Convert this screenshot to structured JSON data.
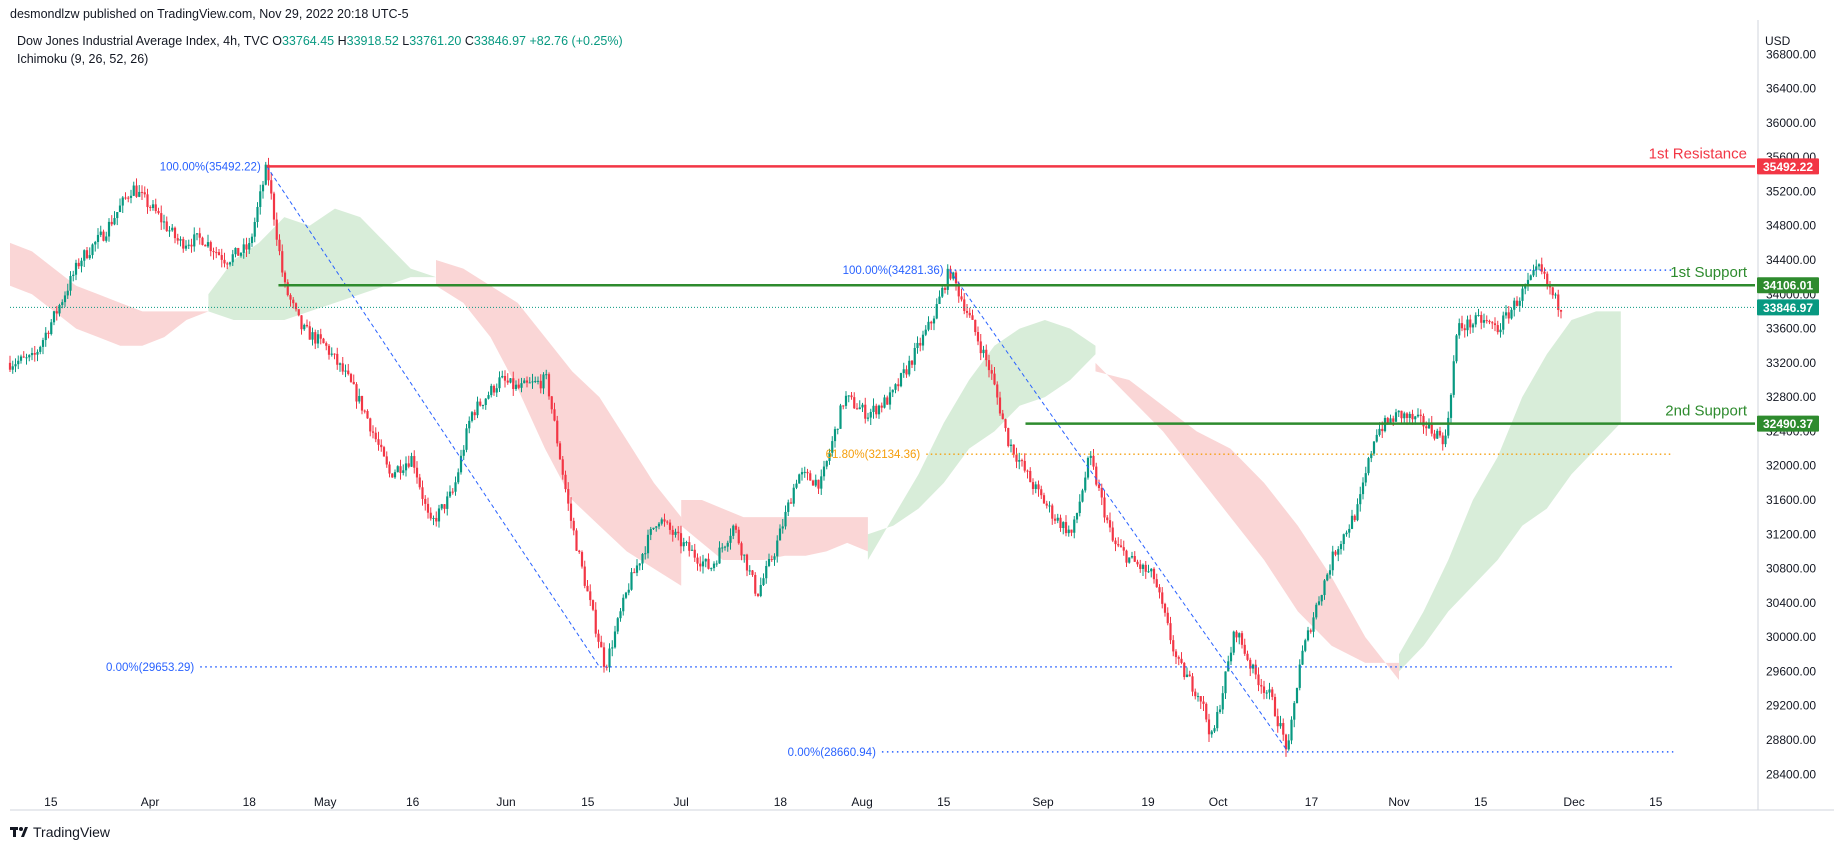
{
  "header": {
    "published": "desmondlzw published on TradingView.com, Nov 29, 2022 20:18 UTC-5",
    "symbol_title": "Dow Jones Industrial Average Index, 4h, TVC",
    "ohlc": {
      "o_label": "O",
      "o": "33764.45",
      "h_label": "H",
      "h": "33918.52",
      "l_label": "L",
      "l": "33761.20",
      "c_label": "C",
      "c": "33846.97",
      "change": "+82.76 (+0.25%)"
    },
    "indicator": "Ichimoku (9, 26, 52, 26)",
    "currency": "USD"
  },
  "footer": {
    "brand": "TradingView"
  },
  "colors": {
    "up": "#089981",
    "down": "#f23645",
    "resistance": "#f23645",
    "support": "#2e8b2e",
    "fib": "#2962ff",
    "fib618": "#f59e0b",
    "cloud_bull": "#c8e6c9",
    "cloud_bear": "#f8c5c5",
    "last_price": "#089981"
  },
  "chart_data": {
    "type": "candlestick",
    "title": "Dow Jones Industrial Average Index, 4h, TVC",
    "y_axis": {
      "min": 28100,
      "max": 37200,
      "ticks": [
        28400,
        28800,
        29200,
        29600,
        30000,
        30400,
        30800,
        31200,
        31600,
        32000,
        32400,
        32800,
        33200,
        33600,
        34000,
        34400,
        34800,
        35200,
        35600,
        36000,
        36400,
        36800
      ],
      "tick_labels": [
        "28400.00",
        "28800.00",
        "29200.00",
        "29600.00",
        "30000.00",
        "30400.00",
        "30800.00",
        "31200.00",
        "31600.00",
        "32000.00",
        "32400.00",
        "32800.00",
        "33200.00",
        "33600.00",
        "34000.00",
        "34400.00",
        "34800.00",
        "35200.00",
        "35600.00",
        "36000.00",
        "36400.00",
        "36800.00"
      ]
    },
    "x_axis": {
      "domain": [
        "2022-03-08",
        "2023-01-01"
      ],
      "ticks": [
        {
          "date": "2022-03-15",
          "label": "15"
        },
        {
          "date": "2022-04-01",
          "label": "Apr"
        },
        {
          "date": "2022-04-18",
          "label": "18"
        },
        {
          "date": "2022-05-01",
          "label": "May"
        },
        {
          "date": "2022-05-16",
          "label": "16"
        },
        {
          "date": "2022-06-01",
          "label": "Jun"
        },
        {
          "date": "2022-06-15",
          "label": "15"
        },
        {
          "date": "2022-07-01",
          "label": "Jul"
        },
        {
          "date": "2022-07-18",
          "label": "18"
        },
        {
          "date": "2022-08-01",
          "label": "Aug"
        },
        {
          "date": "2022-08-15",
          "label": "15"
        },
        {
          "date": "2022-09-01",
          "label": "Sep"
        },
        {
          "date": "2022-09-19",
          "label": "19"
        },
        {
          "date": "2022-10-01",
          "label": "Oct"
        },
        {
          "date": "2022-10-17",
          "label": "17"
        },
        {
          "date": "2022-11-01",
          "label": "Nov"
        },
        {
          "date": "2022-11-15",
          "label": "15"
        },
        {
          "date": "2022-12-01",
          "label": "Dec"
        },
        {
          "date": "2022-12-15",
          "label": "15"
        }
      ]
    },
    "price_path": [
      [
        "2022-03-08",
        33200
      ],
      [
        "2022-03-12",
        33250
      ],
      [
        "2022-03-16",
        33800
      ],
      [
        "2022-03-20",
        34400
      ],
      [
        "2022-03-24",
        34700
      ],
      [
        "2022-03-29",
        35250
      ],
      [
        "2022-04-02",
        34950
      ],
      [
        "2022-04-06",
        34600
      ],
      [
        "2022-04-10",
        34650
      ],
      [
        "2022-04-14",
        34400
      ],
      [
        "2022-04-18",
        34550
      ],
      [
        "2022-04-21",
        35492
      ],
      [
        "2022-04-24",
        34100
      ],
      [
        "2022-04-27",
        33600
      ],
      [
        "2022-05-01",
        33400
      ],
      [
        "2022-05-05",
        33000
      ],
      [
        "2022-05-08",
        32600
      ],
      [
        "2022-05-12",
        31900
      ],
      [
        "2022-05-16",
        32100
      ],
      [
        "2022-05-19",
        31300
      ],
      [
        "2022-05-23",
        31700
      ],
      [
        "2022-05-26",
        32600
      ],
      [
        "2022-05-31",
        33000
      ],
      [
        "2022-06-03",
        32900
      ],
      [
        "2022-06-08",
        33000
      ],
      [
        "2022-06-12",
        31400
      ],
      [
        "2022-06-15",
        30500
      ],
      [
        "2022-06-18",
        29653
      ],
      [
        "2022-06-22",
        30600
      ],
      [
        "2022-06-27",
        31400
      ],
      [
        "2022-07-01",
        31100
      ],
      [
        "2022-07-06",
        30800
      ],
      [
        "2022-07-10",
        31300
      ],
      [
        "2022-07-14",
        30500
      ],
      [
        "2022-07-17",
        31000
      ],
      [
        "2022-07-21",
        31900
      ],
      [
        "2022-07-25",
        31800
      ],
      [
        "2022-07-29",
        32800
      ],
      [
        "2022-08-02",
        32600
      ],
      [
        "2022-08-06",
        32800
      ],
      [
        "2022-08-10",
        33300
      ],
      [
        "2022-08-13",
        33700
      ],
      [
        "2022-08-16",
        34281
      ],
      [
        "2022-08-19",
        33800
      ],
      [
        "2022-08-23",
        33100
      ],
      [
        "2022-08-26",
        32300
      ],
      [
        "2022-08-30",
        31800
      ],
      [
        "2022-09-03",
        31400
      ],
      [
        "2022-09-06",
        31200
      ],
      [
        "2022-09-09",
        32100
      ],
      [
        "2022-09-13",
        31100
      ],
      [
        "2022-09-16",
        30900
      ],
      [
        "2022-09-20",
        30700
      ],
      [
        "2022-09-24",
        29700
      ],
      [
        "2022-09-28",
        29300
      ],
      [
        "2022-09-30",
        28800
      ],
      [
        "2022-10-04",
        30100
      ],
      [
        "2022-10-07",
        29600
      ],
      [
        "2022-10-10",
        29300
      ],
      [
        "2022-10-13",
        28661
      ],
      [
        "2022-10-15",
        29700
      ],
      [
        "2022-10-18",
        30400
      ],
      [
        "2022-10-21",
        31000
      ],
      [
        "2022-10-25",
        31500
      ],
      [
        "2022-10-28",
        32400
      ],
      [
        "2022-11-01",
        32600
      ],
      [
        "2022-11-05",
        32500
      ],
      [
        "2022-11-09",
        32300
      ],
      [
        "2022-11-11",
        33600
      ],
      [
        "2022-11-15",
        33700
      ],
      [
        "2022-11-18",
        33600
      ],
      [
        "2022-11-22",
        34000
      ],
      [
        "2022-11-25",
        34300
      ],
      [
        "2022-11-28",
        33900
      ],
      [
        "2022-11-29",
        33847
      ]
    ],
    "ichimoku_cloud": [
      {
        "from": "2022-03-08",
        "to": "2022-04-11",
        "bias": "bearish",
        "a": [
          34600,
          34500,
          34300,
          34100,
          34000,
          33900,
          33800,
          33800,
          33800,
          33800
        ],
        "b": [
          34100,
          34000,
          33800,
          33600,
          33500,
          33400,
          33400,
          33500,
          33700,
          33800
        ]
      },
      {
        "from": "2022-04-11",
        "to": "2022-05-20",
        "bias": "bullish",
        "a": [
          34000,
          34400,
          34600,
          34900,
          34800,
          35000,
          34900,
          34600,
          34300,
          34200
        ],
        "b": [
          33800,
          33700,
          33700,
          33700,
          33800,
          33900,
          34000,
          34100,
          34200,
          34200
        ]
      },
      {
        "from": "2022-05-20",
        "to": "2022-07-01",
        "bias": "bearish",
        "a": [
          34100,
          33900,
          33500,
          32900,
          32200,
          31600,
          31300,
          31000,
          30800,
          30600
        ],
        "b": [
          34400,
          34300,
          34100,
          33900,
          33500,
          33100,
          32800,
          32300,
          31800,
          31400
        ]
      },
      {
        "from": "2022-07-01",
        "to": "2022-08-02",
        "bias": "bearish",
        "a": [
          31300,
          31100,
          30900,
          30900,
          30900,
          30950,
          30950,
          31000,
          31100,
          31000
        ],
        "b": [
          31600,
          31600,
          31500,
          31400,
          31400,
          31400,
          31400,
          31400,
          31400,
          31400
        ]
      },
      {
        "from": "2022-08-02",
        "to": "2022-09-10",
        "bias": "bullish",
        "a": [
          30900,
          31400,
          31900,
          32500,
          33000,
          33400,
          33600,
          33700,
          33600,
          33400
        ],
        "b": [
          31200,
          31300,
          31500,
          31800,
          32200,
          32400,
          32700,
          32800,
          33000,
          33300
        ]
      },
      {
        "from": "2022-09-10",
        "to": "2022-11-01",
        "bias": "bearish",
        "a": [
          33200,
          32800,
          32400,
          31900,
          31400,
          30900,
          30300,
          29900,
          29700,
          29700
        ],
        "b": [
          33100,
          33000,
          32700,
          32400,
          32200,
          31800,
          31300,
          30700,
          30000,
          29500
        ]
      },
      {
        "from": "2022-11-01",
        "to": "2022-12-09",
        "bias": "bullish",
        "a": [
          29800,
          30300,
          30900,
          31600,
          32100,
          32800,
          33300,
          33700,
          33800,
          33800
        ],
        "b": [
          29600,
          29900,
          30300,
          30600,
          30900,
          31300,
          31500,
          31900,
          32200,
          32500
        ]
      }
    ],
    "horizontal_levels": [
      {
        "name": "1st Resistance",
        "label": "1st Resistance",
        "value": 35492.22,
        "price_tag": "35492.22",
        "from": "2022-04-21",
        "role": "resistance"
      },
      {
        "name": "1st Support",
        "label": "1st Support",
        "value": 34106.01,
        "price_tag": "34106.01",
        "from": "2022-04-23",
        "role": "support"
      },
      {
        "name": "2nd Support",
        "label": "2nd Support",
        "value": 32490.37,
        "price_tag": "32490.37",
        "from": "2022-08-29",
        "role": "support"
      }
    ],
    "fibonacci": [
      {
        "label_100": "100.00%(35492.22)",
        "label_0": "0.00%(29653.29)",
        "high": {
          "date": "2022-04-21",
          "value": 35492.22
        },
        "low": {
          "date": "2022-06-17",
          "value": 29653.29
        },
        "line_to": "2022-12-18"
      },
      {
        "label_100": "100.00%(34281.36)",
        "label_0": "0.00%(28660.94)",
        "label_618": "61.80%(32134.36)",
        "level_618": 32134.36,
        "high": {
          "date": "2022-08-16",
          "value": 34281.36
        },
        "low": {
          "date": "2022-10-13",
          "value": 28660.94
        },
        "line_to": "2022-12-18"
      }
    ],
    "last_price": {
      "value": 33846.97,
      "label": "33846.97"
    }
  }
}
